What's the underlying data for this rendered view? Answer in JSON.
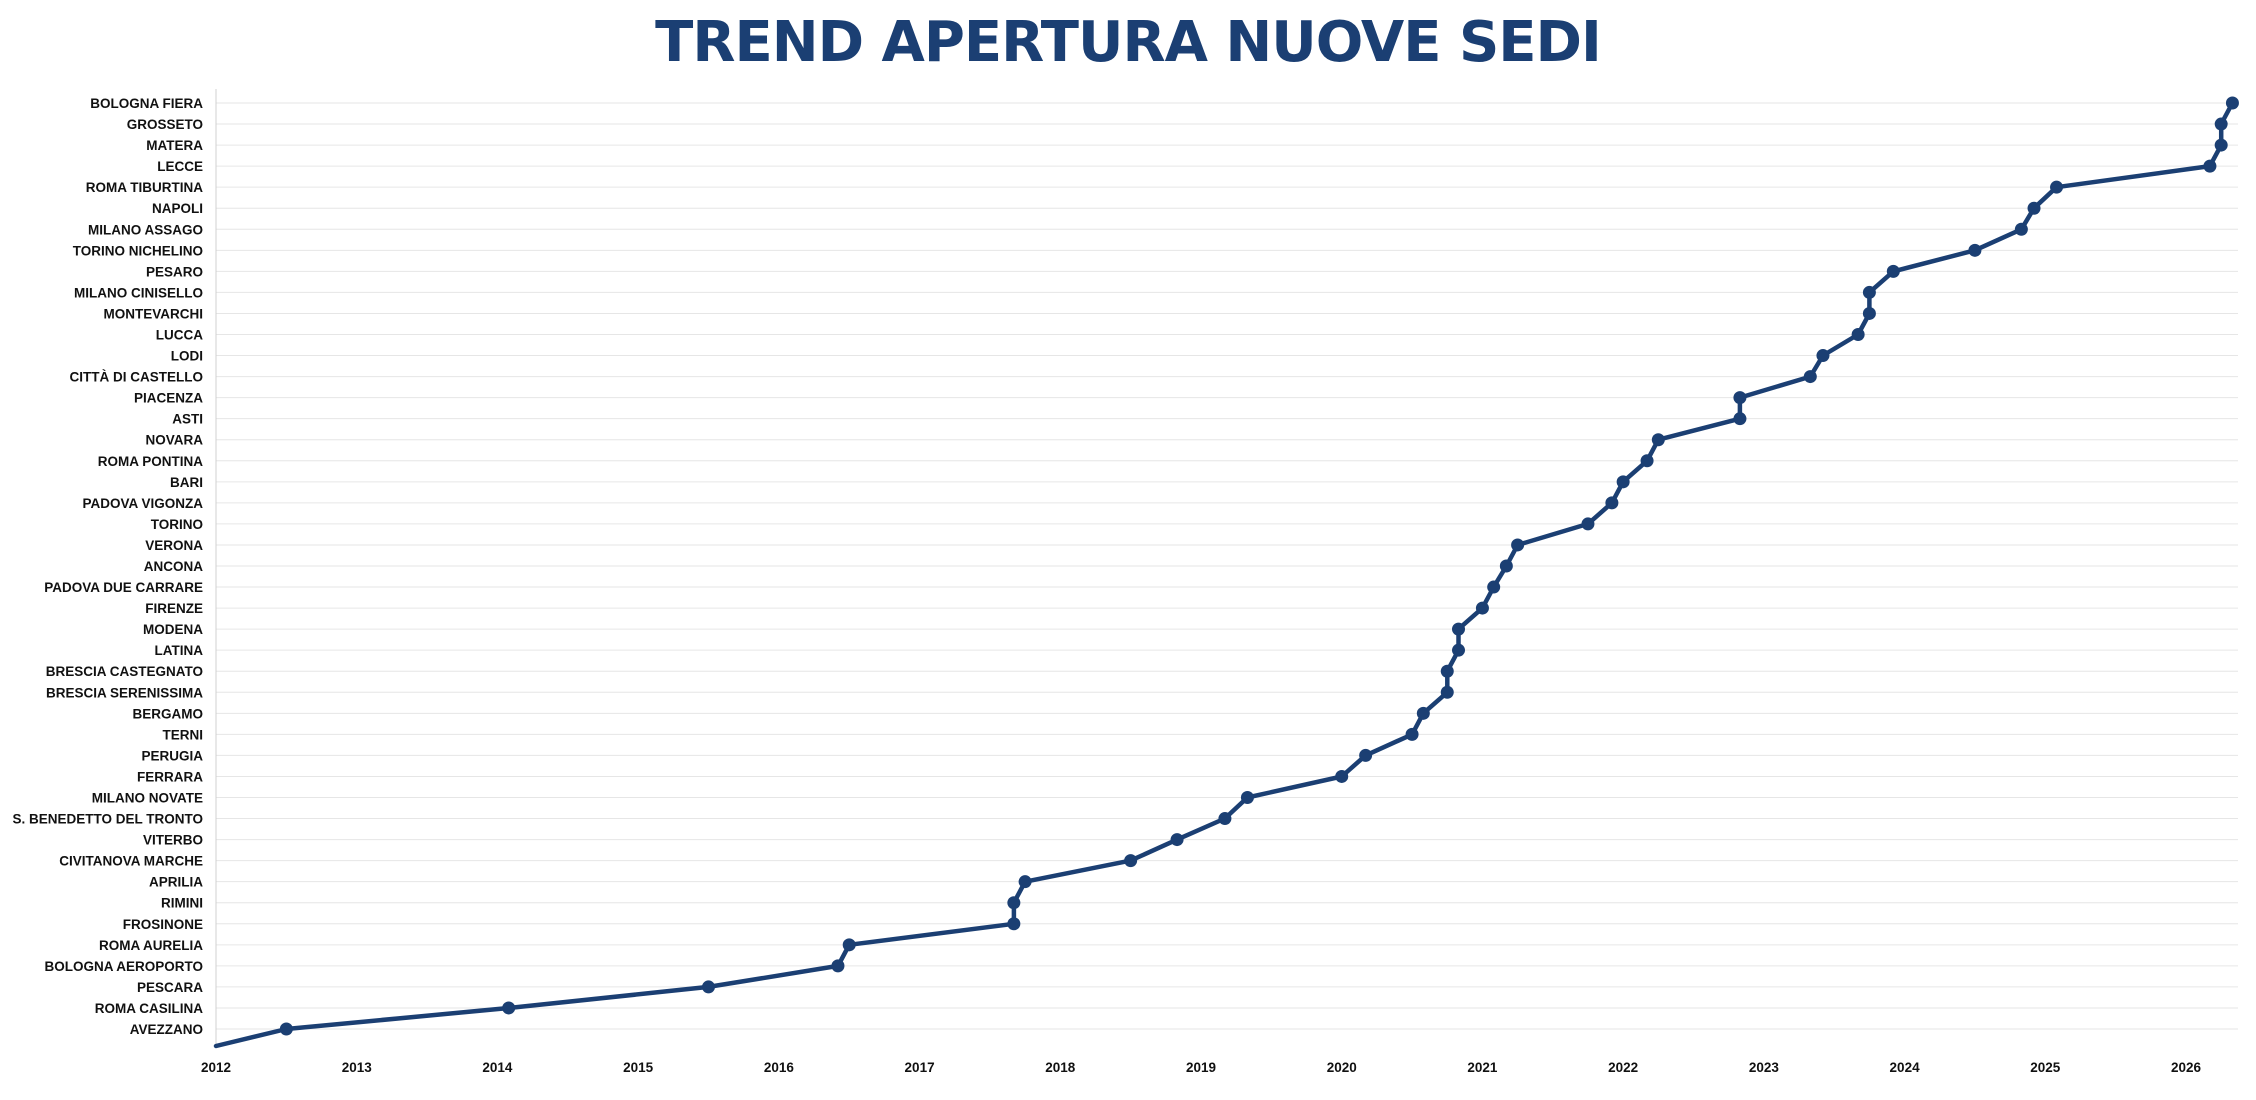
{
  "chart_data": {
    "type": "line",
    "title": "TREND APERTURA NUOVE SEDI",
    "xlabel": "",
    "ylabel": "",
    "x_ticks": [
      "2012",
      "2013",
      "2014",
      "2015",
      "2016",
      "2017",
      "2018",
      "2019",
      "2020",
      "2021",
      "2022",
      "2023",
      "2024",
      "2025",
      "2026"
    ],
    "xlim": [
      2012.0,
      2026.4
    ],
    "grid": true,
    "legend": "none",
    "color": "#1b3f73",
    "start_point": {
      "x": 2012.0,
      "label": ""
    },
    "points": [
      {
        "label": "AVEZZANO",
        "x": 2012.5
      },
      {
        "label": "ROMA CASILINA",
        "x": 2014.08
      },
      {
        "label": "PESCARA",
        "x": 2015.5
      },
      {
        "label": "BOLOGNA AEROPORTO",
        "x": 2016.42
      },
      {
        "label": "ROMA AURELIA",
        "x": 2016.5
      },
      {
        "label": "FROSINONE",
        "x": 2017.67
      },
      {
        "label": "RIMINI",
        "x": 2017.67
      },
      {
        "label": "APRILIA",
        "x": 2017.75
      },
      {
        "label": "CIVITANOVA MARCHE",
        "x": 2018.5
      },
      {
        "label": "VITERBO",
        "x": 2018.83
      },
      {
        "label": "S. BENEDETTO DEL TRONTO",
        "x": 2019.17
      },
      {
        "label": "MILANO NOVATE",
        "x": 2019.33
      },
      {
        "label": "FERRARA",
        "x": 2020.0
      },
      {
        "label": "PERUGIA",
        "x": 2020.17
      },
      {
        "label": "TERNI",
        "x": 2020.5
      },
      {
        "label": "BERGAMO",
        "x": 2020.58
      },
      {
        "label": "BRESCIA SERENISSIMA",
        "x": 2020.75
      },
      {
        "label": "BRESCIA CASTEGNATO",
        "x": 2020.75
      },
      {
        "label": "LATINA",
        "x": 2020.83
      },
      {
        "label": "MODENA",
        "x": 2020.83
      },
      {
        "label": "FIRENZE",
        "x": 2021.0
      },
      {
        "label": "PADOVA DUE CARRARE",
        "x": 2021.08
      },
      {
        "label": "ANCONA",
        "x": 2021.17
      },
      {
        "label": "VERONA",
        "x": 2021.25
      },
      {
        "label": "TORINO",
        "x": 2021.75
      },
      {
        "label": "PADOVA VIGONZA",
        "x": 2021.92
      },
      {
        "label": "BARI",
        "x": 2022.0
      },
      {
        "label": "ROMA PONTINA",
        "x": 2022.17
      },
      {
        "label": "NOVARA",
        "x": 2022.25
      },
      {
        "label": "ASTI",
        "x": 2022.83
      },
      {
        "label": "PIACENZA",
        "x": 2022.83
      },
      {
        "label": "CITTÀ DI CASTELLO",
        "x": 2023.33
      },
      {
        "label": "LODI",
        "x": 2023.42
      },
      {
        "label": "LUCCA",
        "x": 2023.67
      },
      {
        "label": "MONTEVARCHI",
        "x": 2023.75
      },
      {
        "label": "MILANO CINISELLO",
        "x": 2023.75
      },
      {
        "label": "PESARO",
        "x": 2023.92
      },
      {
        "label": "TORINO NICHELINO",
        "x": 2024.5
      },
      {
        "label": "MILANO ASSAGO",
        "x": 2024.83
      },
      {
        "label": "NAPOLI",
        "x": 2024.92
      },
      {
        "label": "ROMA TIBURTINA",
        "x": 2025.08
      },
      {
        "label": "LECCE",
        "x": 2026.17
      },
      {
        "label": "MATERA",
        "x": 2026.25
      },
      {
        "label": "GROSSETO",
        "x": 2026.25
      },
      {
        "label": "BOLOGNA FIERA",
        "x": 2026.33
      }
    ]
  }
}
